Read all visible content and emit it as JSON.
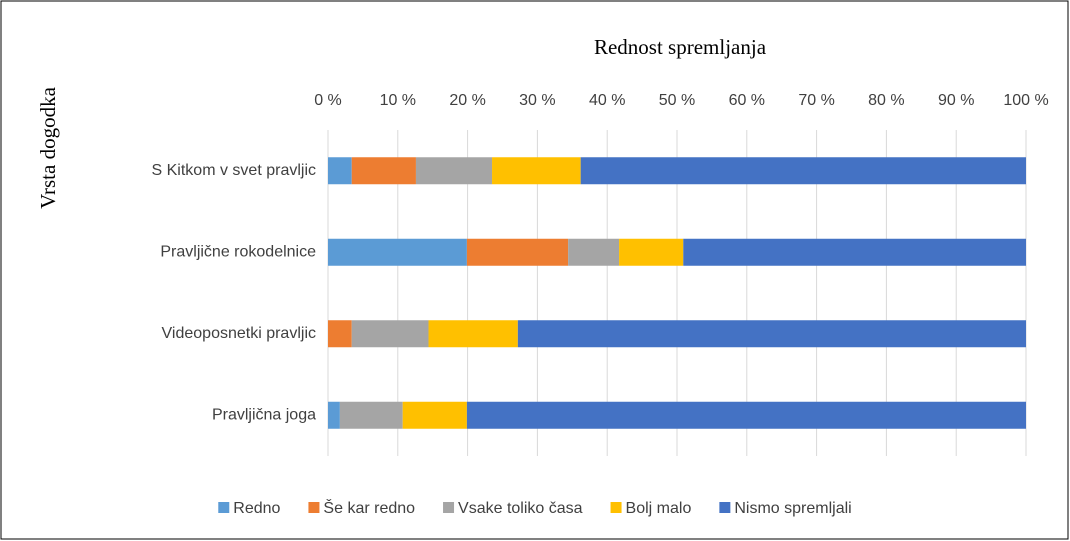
{
  "chart_data": {
    "type": "stacked_barh",
    "xlabel": "Rednost spremljanja",
    "ylabel": "Vrsta dogodka",
    "categories": [
      "S Kitkom v svet pravljic",
      "Pravljične rokodelnice",
      "Videoposnetki pravljic",
      "Pravljična joga"
    ],
    "series": [
      {
        "name": "Redno",
        "color": "#5b9bd5",
        "values": [
          3.4,
          19.9,
          0,
          1.7
        ]
      },
      {
        "name": "Še kar redno",
        "color": "#ed7d31",
        "values": [
          9.2,
          14.5,
          3.4,
          0
        ]
      },
      {
        "name": "Vsake toliko časa",
        "color": "#a5a5a5",
        "values": [
          10.9,
          7.3,
          11.0,
          9.0
        ]
      },
      {
        "name": "Bolj malo",
        "color": "#ffc000",
        "values": [
          12.7,
          9.2,
          12.8,
          9.2
        ]
      },
      {
        "name": "Nismo spremljali",
        "color": "#4472c4",
        "values": [
          63.8,
          49.1,
          72.8,
          80.1
        ]
      }
    ],
    "xlim": [
      0,
      100
    ],
    "xticks": [
      {
        "value": 0,
        "label": "0 %"
      },
      {
        "value": 10,
        "label": "10 %"
      },
      {
        "value": 20,
        "label": "20 %"
      },
      {
        "value": 30,
        "label": "30 %"
      },
      {
        "value": 40,
        "label": "40 %"
      },
      {
        "value": 50,
        "label": "50 %"
      },
      {
        "value": 60,
        "label": "60 %"
      },
      {
        "value": 70,
        "label": "70 %"
      },
      {
        "value": 80,
        "label": "80 %"
      },
      {
        "value": 90,
        "label": "90 %"
      },
      {
        "value": 100,
        "label": "100 %"
      }
    ],
    "grid": true,
    "legend": "bottom"
  }
}
